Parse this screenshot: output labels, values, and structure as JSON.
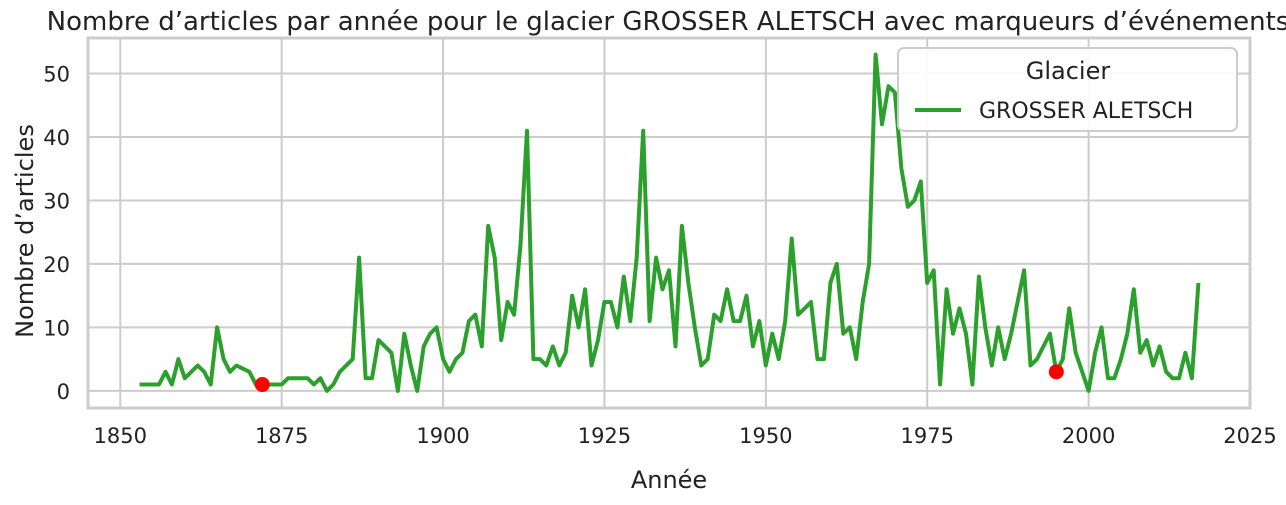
{
  "chart_data": {
    "type": "line",
    "title": "Nombre d’articles par année pour le glacier GROSSER ALETSCH avec marqueurs d’événements",
    "xlabel": "Année",
    "ylabel": "Nombre d’articles",
    "xlim": [
      1845,
      2025
    ],
    "ylim": [
      -2.7,
      55.6
    ],
    "x_ticks": [
      1850,
      1875,
      1900,
      1925,
      1950,
      1975,
      2000,
      2025
    ],
    "y_ticks": [
      0,
      10,
      20,
      30,
      40,
      50
    ],
    "grid": true,
    "legend": {
      "title": "Glacier",
      "placement": "top-right"
    },
    "colors": {
      "line": "#2ca02c",
      "event": "#ff0000",
      "grid": "#cccccc",
      "frame": "#cccccc"
    },
    "series": [
      {
        "name": "GROSSER ALETSCH",
        "x": [
          1853,
          1854,
          1855,
          1856,
          1857,
          1858,
          1859,
          1860,
          1861,
          1862,
          1863,
          1864,
          1865,
          1866,
          1867,
          1868,
          1869,
          1870,
          1871,
          1872,
          1873,
          1874,
          1875,
          1876,
          1877,
          1878,
          1879,
          1880,
          1881,
          1882,
          1883,
          1884,
          1885,
          1886,
          1887,
          1888,
          1889,
          1890,
          1891,
          1892,
          1893,
          1894,
          1895,
          1896,
          1897,
          1898,
          1899,
          1900,
          1901,
          1902,
          1903,
          1904,
          1905,
          1906,
          1907,
          1908,
          1909,
          1910,
          1911,
          1912,
          1913,
          1914,
          1915,
          1916,
          1917,
          1918,
          1919,
          1920,
          1921,
          1922,
          1923,
          1924,
          1925,
          1926,
          1927,
          1928,
          1929,
          1930,
          1931,
          1932,
          1933,
          1934,
          1935,
          1936,
          1937,
          1938,
          1939,
          1940,
          1941,
          1942,
          1943,
          1944,
          1945,
          1946,
          1947,
          1948,
          1949,
          1950,
          1951,
          1952,
          1953,
          1954,
          1955,
          1956,
          1957,
          1958,
          1959,
          1960,
          1961,
          1962,
          1963,
          1964,
          1965,
          1966,
          1967,
          1968,
          1969,
          1970,
          1971,
          1972,
          1973,
          1974,
          1975,
          1976,
          1977,
          1978,
          1979,
          1980,
          1981,
          1982,
          1983,
          1984,
          1985,
          1986,
          1987,
          1988,
          1989,
          1990,
          1991,
          1992,
          1993,
          1994,
          1995,
          1996,
          1997,
          1998,
          1999,
          2000,
          2001,
          2002,
          2003,
          2004,
          2005,
          2006,
          2007,
          2008,
          2009,
          2010,
          2011,
          2012,
          2013,
          2014,
          2015,
          2016,
          2017
        ],
        "values": [
          1,
          1,
          1,
          1,
          3,
          1,
          5,
          2,
          3,
          4,
          3,
          1,
          10,
          5,
          3,
          4,
          3.5,
          3,
          1,
          1,
          1,
          1,
          1,
          2,
          2,
          2,
          2,
          1,
          2,
          0,
          1,
          3,
          4,
          5,
          21,
          2,
          2,
          8,
          7,
          6,
          0,
          9,
          4,
          0,
          7,
          9,
          10,
          5,
          3,
          5,
          6,
          11,
          12,
          7,
          26,
          21,
          8,
          14,
          12,
          23,
          41,
          5,
          5,
          4,
          7,
          4,
          6,
          15,
          10,
          16,
          4,
          8,
          14,
          14,
          10,
          18,
          11,
          21,
          41,
          11,
          21,
          16,
          19,
          7,
          26,
          17,
          10,
          4,
          5,
          12,
          11,
          16,
          11,
          11,
          15,
          7,
          11,
          4,
          9,
          5,
          11,
          24,
          12,
          13,
          14,
          5,
          5,
          17,
          20,
          9,
          10,
          5,
          14,
          20,
          53,
          42,
          48,
          47,
          35,
          29,
          30,
          33,
          17,
          19,
          1,
          16,
          9,
          13,
          9,
          1,
          18,
          10,
          4,
          10,
          5,
          9,
          14,
          19,
          4,
          5,
          7,
          9,
          3,
          5,
          13,
          6,
          3,
          0,
          6,
          10,
          2,
          2,
          5,
          9,
          16,
          6,
          8,
          4,
          7,
          3,
          2,
          2,
          6,
          2,
          17
        ]
      }
    ],
    "events": [
      {
        "x": 1872,
        "y": 1
      },
      {
        "x": 1995,
        "y": 3
      }
    ]
  }
}
